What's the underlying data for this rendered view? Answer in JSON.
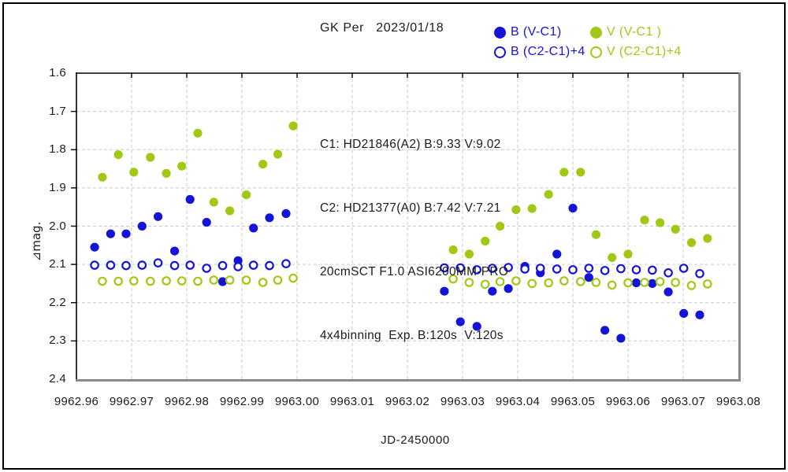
{
  "title": "GK Per   2023/01/18",
  "colors": {
    "B": "#1414d6",
    "V": "#a1c814",
    "grid": "#c9c9c9",
    "frame_dark": "#000000",
    "frame_gray": "#8a8a8a",
    "text": "#1c1c1c",
    "background": "#ffffff"
  },
  "legend": {
    "items": [
      {
        "label": "B (V-C1)",
        "marker": "filled",
        "series": "B"
      },
      {
        "label": "V (V-C1 )",
        "marker": "filled",
        "series": "V"
      },
      {
        "label": "B (C2-C1)+4",
        "marker": "open",
        "series": "B"
      },
      {
        "label": "V (C2-C1)+4",
        "marker": "open",
        "series": "V"
      }
    ]
  },
  "annotations": {
    "lines": [
      "C1: HD21846(A2) B:9.33 V:9.02",
      "C2: HD21377(A0) B:7.42 V:7.21",
      "20cmSCT F1.0 ASI6200MM-PRO",
      "4x4binning  Exp. B:120s  V:120s"
    ]
  },
  "chart_data": {
    "type": "scatter",
    "title": "GK Per   2023/01/18",
    "xlabel": "JD-2450000",
    "ylabel": "⊿mag.",
    "xlim": [
      9962.96,
      9963.08
    ],
    "ylim": [
      1.6,
      2.4
    ],
    "y_axis_direction": "inverted (1.6 top, 2.4 bottom)",
    "grid": true,
    "legend_position": "top-right",
    "x_tick_labels": [
      "9962.96",
      "9962.97",
      "9962.98",
      "9962.99",
      "9963.00",
      "9963.01",
      "9963.02",
      "9963.03",
      "9963.04",
      "9963.05",
      "9963.06",
      "9963.07",
      "9963.08"
    ],
    "y_tick_labels": [
      "1.6",
      "1.7",
      "1.8",
      "1.9",
      "2.0",
      "2.1",
      "2.2",
      "2.3",
      "2.4"
    ],
    "series": [
      {
        "name": "B (V-C1)",
        "marker": "filled",
        "color_key": "B",
        "points": [
          [
            9962.9633,
            2.055
          ],
          [
            9962.9662,
            2.02
          ],
          [
            9962.969,
            2.02
          ],
          [
            9962.9719,
            2.0
          ],
          [
            9962.9748,
            1.975
          ],
          [
            9962.9778,
            2.065
          ],
          [
            9962.9806,
            1.93
          ],
          [
            9962.9836,
            1.99
          ],
          [
            9962.9865,
            2.145
          ],
          [
            9962.9893,
            2.09
          ],
          [
            9962.9921,
            2.005
          ],
          [
            9962.995,
            1.978
          ],
          [
            9962.998,
            1.967
          ],
          [
            9963.0267,
            2.17
          ],
          [
            9963.0296,
            2.25
          ],
          [
            9963.0326,
            2.262
          ],
          [
            9963.0354,
            2.17
          ],
          [
            9963.0383,
            2.163
          ],
          [
            9963.0413,
            2.105
          ],
          [
            9963.0441,
            2.122
          ],
          [
            9963.0471,
            2.073
          ],
          [
            9963.05,
            1.953
          ],
          [
            9963.0529,
            2.134
          ],
          [
            9963.0558,
            2.272
          ],
          [
            9963.0587,
            2.293
          ],
          [
            9963.0615,
            2.148
          ],
          [
            9963.0644,
            2.15
          ],
          [
            9963.0673,
            2.172
          ],
          [
            9963.0701,
            2.228
          ],
          [
            9963.073,
            2.232
          ]
        ]
      },
      {
        "name": "V (V-C1)",
        "marker": "filled",
        "color_key": "V",
        "points": [
          [
            9962.9647,
            1.872
          ],
          [
            9962.9676,
            1.813
          ],
          [
            9962.9704,
            1.859
          ],
          [
            9962.9734,
            1.82
          ],
          [
            9962.9763,
            1.862
          ],
          [
            9962.9791,
            1.843
          ],
          [
            9962.982,
            1.757
          ],
          [
            9962.9849,
            1.937
          ],
          [
            9962.9878,
            1.96
          ],
          [
            9962.9908,
            1.918
          ],
          [
            9962.9938,
            1.838
          ],
          [
            9962.9965,
            1.812
          ],
          [
            9962.9993,
            1.738
          ],
          [
            9963.0283,
            2.062
          ],
          [
            9963.0312,
            2.073
          ],
          [
            9963.0341,
            2.039
          ],
          [
            9963.0368,
            2.0
          ],
          [
            9963.0397,
            1.957
          ],
          [
            9963.0426,
            1.954
          ],
          [
            9963.0456,
            1.917
          ],
          [
            9963.0484,
            1.859
          ],
          [
            9963.0514,
            1.859
          ],
          [
            9963.0542,
            2.022
          ],
          [
            9963.0571,
            2.082
          ],
          [
            9963.06,
            2.073
          ],
          [
            9963.063,
            1.984
          ],
          [
            9963.0658,
            1.991
          ],
          [
            9963.0686,
            2.008
          ],
          [
            9963.0715,
            2.043
          ],
          [
            9963.0744,
            2.032
          ]
        ]
      },
      {
        "name": "B (C2-C1)+4",
        "marker": "open",
        "color_key": "B",
        "points": [
          [
            9962.9633,
            2.102
          ],
          [
            9962.9662,
            2.102
          ],
          [
            9962.969,
            2.103
          ],
          [
            9962.9719,
            2.102
          ],
          [
            9962.9748,
            2.096
          ],
          [
            9962.9778,
            2.103
          ],
          [
            9962.9806,
            2.102
          ],
          [
            9962.9836,
            2.11
          ],
          [
            9962.9865,
            2.103
          ],
          [
            9962.9893,
            2.106
          ],
          [
            9962.9921,
            2.102
          ],
          [
            9962.995,
            2.103
          ],
          [
            9962.998,
            2.098
          ],
          [
            9963.0267,
            2.109
          ],
          [
            9963.0296,
            2.109
          ],
          [
            9963.0326,
            2.114
          ],
          [
            9963.0354,
            2.11
          ],
          [
            9963.0383,
            2.108
          ],
          [
            9963.0413,
            2.112
          ],
          [
            9963.0441,
            2.11
          ],
          [
            9963.0471,
            2.112
          ],
          [
            9963.05,
            2.114
          ],
          [
            9963.0529,
            2.11
          ],
          [
            9963.0558,
            2.116
          ],
          [
            9963.0587,
            2.111
          ],
          [
            9963.0615,
            2.114
          ],
          [
            9963.0644,
            2.115
          ],
          [
            9963.0673,
            2.122
          ],
          [
            9963.0701,
            2.11
          ],
          [
            9963.073,
            2.124
          ]
        ]
      },
      {
        "name": "V (C2-C1)+4",
        "marker": "open",
        "color_key": "V",
        "points": [
          [
            9962.9647,
            2.144
          ],
          [
            9962.9676,
            2.144
          ],
          [
            9962.9704,
            2.143
          ],
          [
            9962.9734,
            2.144
          ],
          [
            9962.9763,
            2.143
          ],
          [
            9962.9791,
            2.143
          ],
          [
            9962.982,
            2.144
          ],
          [
            9962.9849,
            2.141
          ],
          [
            9962.9878,
            2.141
          ],
          [
            9962.9908,
            2.141
          ],
          [
            9962.9938,
            2.147
          ],
          [
            9962.9965,
            2.141
          ],
          [
            9962.9993,
            2.136
          ],
          [
            9963.0283,
            2.138
          ],
          [
            9963.0312,
            2.147
          ],
          [
            9963.0341,
            2.152
          ],
          [
            9963.0368,
            2.145
          ],
          [
            9963.0397,
            2.143
          ],
          [
            9963.0426,
            2.15
          ],
          [
            9963.0456,
            2.148
          ],
          [
            9963.0484,
            2.143
          ],
          [
            9963.0514,
            2.145
          ],
          [
            9963.0542,
            2.147
          ],
          [
            9963.0571,
            2.154
          ],
          [
            9963.06,
            2.148
          ],
          [
            9963.063,
            2.147
          ],
          [
            9963.0658,
            2.145
          ],
          [
            9963.0686,
            2.147
          ],
          [
            9963.0715,
            2.155
          ],
          [
            9963.0744,
            2.151
          ]
        ]
      }
    ]
  }
}
